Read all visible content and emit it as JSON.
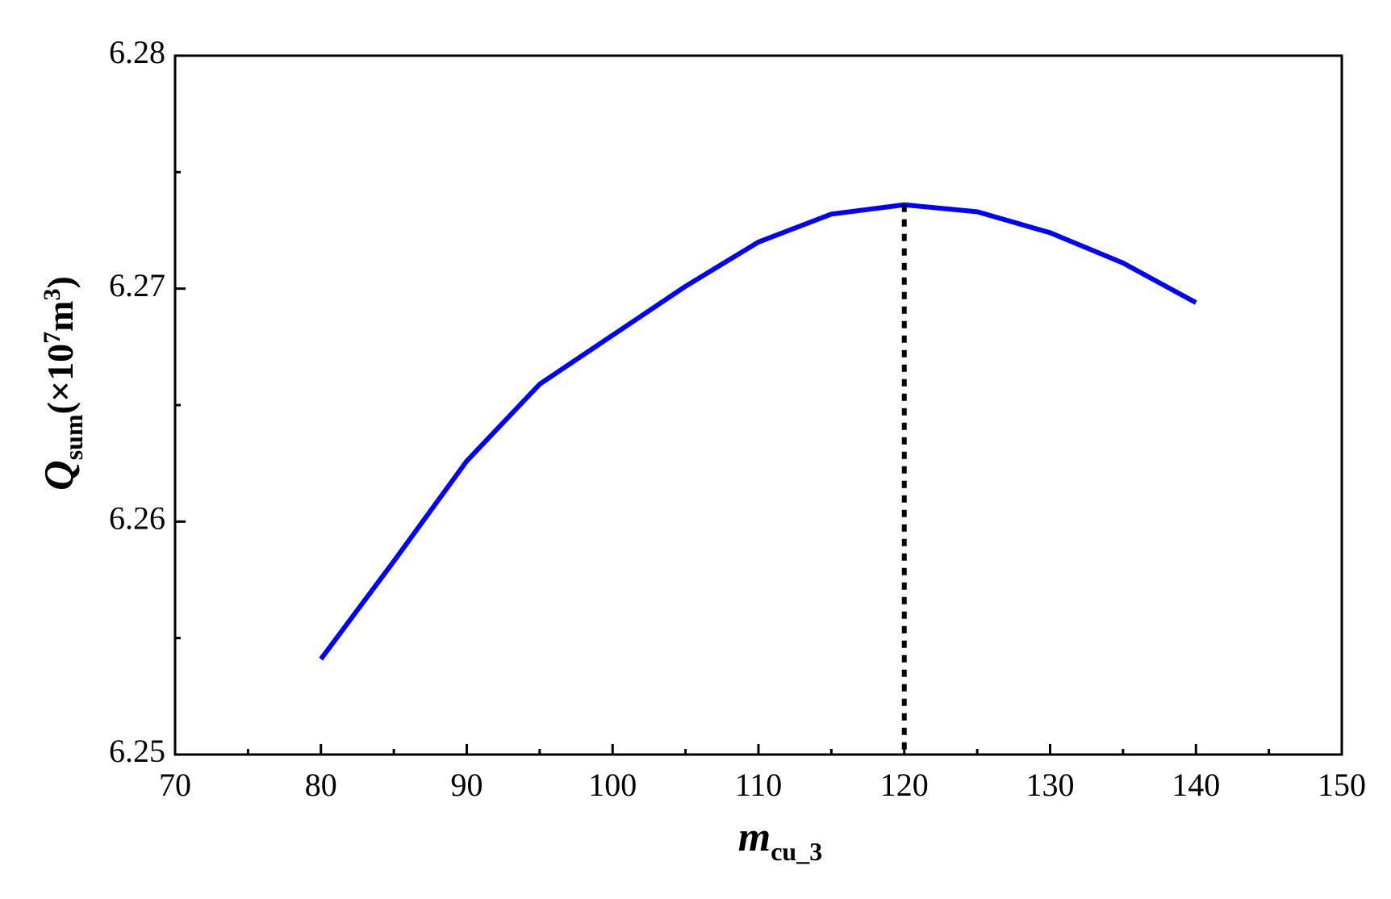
{
  "chart_data": {
    "type": "line",
    "x_label": {
      "main": "m",
      "sub": "cu_3"
    },
    "y_label": {
      "main": "Q",
      "sub": "sum",
      "open": "(×10",
      "sup1": "7",
      "unit": "m",
      "sup2": "3",
      "close": ")"
    },
    "x": [
      80,
      85,
      90,
      95,
      100,
      105,
      110,
      115,
      120,
      125,
      130,
      135,
      140
    ],
    "series": [
      {
        "color": "#0000ff",
        "values": [
          6.2541,
          6.2583,
          6.2626,
          6.2659,
          6.268,
          6.2701,
          6.272,
          6.2732,
          6.2736,
          6.2733,
          6.2724,
          6.2711,
          6.2694
        ]
      }
    ],
    "vline_x": 120,
    "xlim": [
      70,
      150
    ],
    "xticks": [
      70,
      80,
      90,
      100,
      110,
      120,
      130,
      140,
      150
    ],
    "xminorticks": [
      75,
      85,
      95,
      105,
      115,
      125,
      135,
      145
    ],
    "ylim": [
      6.25,
      6.28
    ],
    "yticks": [
      6.25,
      6.26,
      6.27,
      6.28
    ],
    "yminorticks": [
      6.255,
      6.265,
      6.275
    ]
  }
}
